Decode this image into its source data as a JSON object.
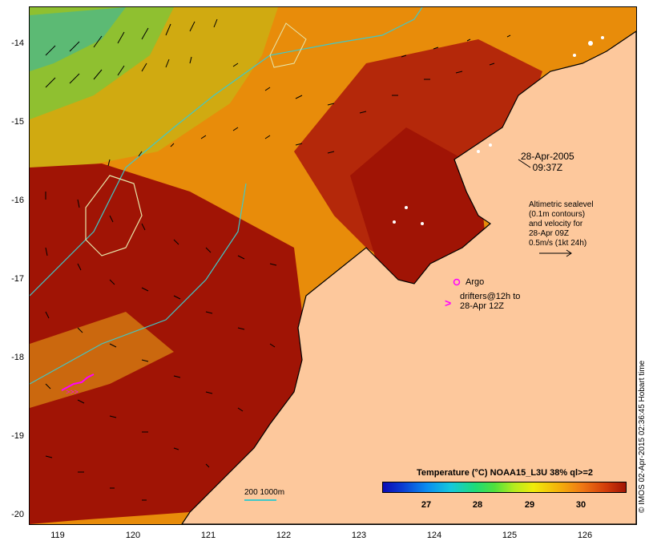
{
  "map": {
    "lat_ticks": [
      "-14",
      "-15",
      "-16",
      "-17",
      "-18",
      "-19",
      "-20"
    ],
    "lon_ticks": [
      "119",
      "120",
      "121",
      "122",
      "123",
      "124",
      "125",
      "126"
    ],
    "lon_range": [
      118.65,
      126.65
    ],
    "lat_range": [
      -13.6,
      -20.1
    ],
    "colors": {
      "land": "#fdc89c",
      "sea_warm": "#a01405",
      "sea_mid": "#d2640a",
      "sea_orange": "#e88c0a",
      "coastline": "#000000",
      "contour": "#40c8c8",
      "drifter": "#ff00ff",
      "argo": "#ff00ff"
    }
  },
  "annotations": {
    "date_line1": "28-Apr-2005",
    "date_line2": "09:37Z",
    "altimetry": [
      "Altimetric sealevel",
      "(0.1m contours)",
      "and velocity for",
      "28-Apr 09Z",
      "0.5m/s (1kt 24h)"
    ],
    "argo_label": "Argo",
    "drifters_line1": "drifters@12h to",
    "drifters_line2": "28-Apr 12Z"
  },
  "colorbar": {
    "title": "Temperature (°C) NOAA15_L3U 38% ql>=2",
    "ticks": [
      "27",
      "28",
      "29",
      "30"
    ]
  },
  "scale_bar": {
    "label": "200  1000m"
  },
  "credit": "© IMOS 02-Apr-2015 02:36:45 Hobart time"
}
